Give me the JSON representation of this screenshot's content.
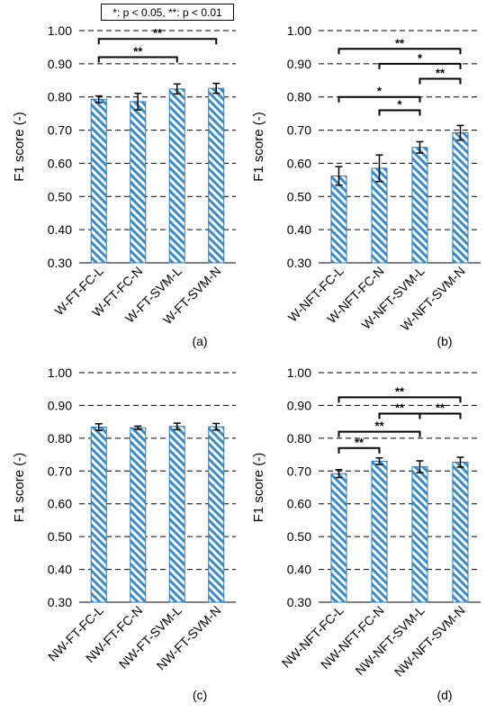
{
  "legend": "*: p < 0.05, **: p < 0.01",
  "colors": {
    "bar_stroke": "#2e7ab8",
    "hatch": "#3a8cc8",
    "grid": "#000000"
  },
  "chart_data": [
    {
      "type": "bar",
      "panel_label": "(a)",
      "ylabel": "F1 score (-)",
      "ylim": [
        0.3,
        1.0
      ],
      "yticks": [
        "0.30",
        "0.40",
        "0.50",
        "0.60",
        "0.70",
        "0.80",
        "0.90",
        "1.00"
      ],
      "grid": "dashed-horizontal",
      "categories": [
        "W-FT-FC-L",
        "W-FT-FC-N",
        "W-FT-SVM-L",
        "W-FT-SVM-N"
      ],
      "values": [
        0.793,
        0.786,
        0.824,
        0.826
      ],
      "errors": [
        0.01,
        0.025,
        0.015,
        0.015
      ],
      "significance": [
        {
          "from": 0,
          "to": 2,
          "level": 0.92,
          "label": "**"
        },
        {
          "from": 0,
          "to": 3,
          "level": 0.975,
          "label": "**"
        }
      ]
    },
    {
      "type": "bar",
      "panel_label": "(b)",
      "ylabel": "F1 score (-)",
      "ylim": [
        0.3,
        1.0
      ],
      "yticks": [
        "0.30",
        "0.40",
        "0.50",
        "0.60",
        "0.70",
        "0.80",
        "0.90",
        "1.00"
      ],
      "grid": "dashed-horizontal",
      "categories": [
        "W-NFT-FC-L",
        "W-NFT-FC-N",
        "W-NFT-SVM-L",
        "W-NFT-SVM-N"
      ],
      "values": [
        0.562,
        0.585,
        0.648,
        0.692
      ],
      "errors": [
        0.028,
        0.04,
        0.017,
        0.022
      ],
      "significance": [
        {
          "from": 1,
          "to": 2,
          "level": 0.76,
          "label": "*"
        },
        {
          "from": 0,
          "to": 2,
          "level": 0.8,
          "label": "*"
        },
        {
          "from": 2,
          "to": 3,
          "level": 0.855,
          "label": "**"
        },
        {
          "from": 1,
          "to": 3,
          "level": 0.9,
          "label": "*"
        },
        {
          "from": 0,
          "to": 3,
          "level": 0.945,
          "label": "**"
        }
      ]
    },
    {
      "type": "bar",
      "panel_label": "(c)",
      "ylabel": "F1 score (-)",
      "ylim": [
        0.3,
        1.0
      ],
      "yticks": [
        "0.30",
        "0.40",
        "0.50",
        "0.60",
        "0.70",
        "0.80",
        "0.90",
        "1.00"
      ],
      "grid": "dashed-horizontal",
      "categories": [
        "NW-FT-FC-L",
        "NW-FT-FC-N",
        "NW-FT-SVM-L",
        "NW-FT-SVM-N"
      ],
      "values": [
        0.834,
        0.832,
        0.836,
        0.835
      ],
      "errors": [
        0.01,
        0.005,
        0.01,
        0.01
      ],
      "significance": []
    },
    {
      "type": "bar",
      "panel_label": "(d)",
      "ylabel": "F1 score (-)",
      "ylim": [
        0.3,
        1.0
      ],
      "yticks": [
        "0.30",
        "0.40",
        "0.50",
        "0.60",
        "0.70",
        "0.80",
        "0.90",
        "1.00"
      ],
      "grid": "dashed-horizontal",
      "categories": [
        "NW-NFT-FC-L",
        "NW-NFT-FC-N",
        "NW-NFT-SVM-L",
        "NW-NFT-SVM-N"
      ],
      "values": [
        0.692,
        0.73,
        0.713,
        0.727
      ],
      "errors": [
        0.012,
        0.01,
        0.018,
        0.015
      ],
      "significance": [
        {
          "from": 0,
          "to": 1,
          "level": 0.77,
          "label": "**"
        },
        {
          "from": 0,
          "to": 2,
          "level": 0.82,
          "label": "**"
        },
        {
          "from": 1,
          "to": 2,
          "level": 0.875,
          "label": "**"
        },
        {
          "from": 2,
          "to": 3,
          "level": 0.875,
          "label": "**"
        },
        {
          "from": 0,
          "to": 3,
          "level": 0.925,
          "label": "**"
        }
      ]
    }
  ]
}
